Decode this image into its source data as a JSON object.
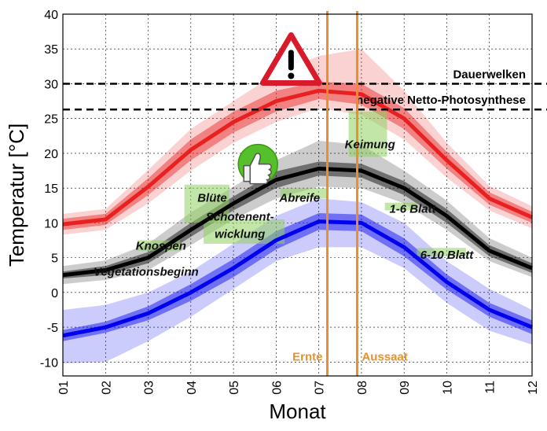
{
  "chart_data": {
    "type": "line",
    "xlabel": "Monat",
    "ylabel": "Temperatur [°C]",
    "categories": [
      "01",
      "02",
      "03",
      "04",
      "05",
      "06",
      "07",
      "08",
      "09",
      "10",
      "11",
      "12"
    ],
    "ylim": [
      -12,
      40
    ],
    "yticks": [
      40,
      35,
      30,
      25,
      20,
      15,
      10,
      5,
      0,
      -5,
      -10
    ],
    "grid": true,
    "series": [
      {
        "color": "#e82020",
        "values": [
          9.8,
          10.5,
          15.2,
          20.5,
          24.5,
          27.5,
          29.0,
          28.5,
          25.0,
          19.0,
          13.5,
          10.8
        ],
        "inner_band_low": [
          9.0,
          9.7,
          14.0,
          19.0,
          23.0,
          26.0,
          27.8,
          27.0,
          23.5,
          17.8,
          12.6,
          10.0
        ],
        "inner_band_high": [
          10.6,
          11.3,
          16.4,
          22.0,
          26.0,
          29.0,
          30.3,
          30.0,
          26.5,
          20.2,
          14.4,
          11.6
        ],
        "outer_band_low": [
          8.3,
          9.0,
          12.8,
          17.5,
          21.5,
          24.5,
          26.5,
          25.5,
          22.0,
          16.5,
          11.8,
          9.2
        ],
        "outer_band_high": [
          11.3,
          12.0,
          17.6,
          23.5,
          27.5,
          31.5,
          34.0,
          35.0,
          29.0,
          21.5,
          15.3,
          12.4
        ]
      },
      {
        "color": "#000000",
        "values": [
          2.5,
          3.2,
          5.0,
          9.0,
          12.8,
          16.2,
          17.8,
          17.5,
          15.0,
          11.0,
          6.0,
          3.5
        ],
        "inner_band_low": [
          2.0,
          2.5,
          4.2,
          8.0,
          11.8,
          15.0,
          16.8,
          16.5,
          14.0,
          10.0,
          5.2,
          2.8
        ],
        "inner_band_high": [
          3.0,
          3.8,
          5.8,
          10.0,
          13.8,
          17.4,
          18.8,
          18.5,
          16.0,
          12.0,
          6.8,
          4.2
        ],
        "outer_band_low": [
          1.2,
          1.8,
          3.2,
          6.8,
          10.5,
          13.5,
          15.2,
          15.0,
          12.8,
          9.0,
          4.5,
          2.2
        ],
        "outer_band_high": [
          3.8,
          4.6,
          7.0,
          11.5,
          15.2,
          19.0,
          21.8,
          21.2,
          17.5,
          13.2,
          7.8,
          5.0
        ]
      },
      {
        "color": "#0000ee",
        "values": [
          -6.2,
          -5.0,
          -3.0,
          0.0,
          3.5,
          7.5,
          10.2,
          10.0,
          6.5,
          1.5,
          -2.5,
          -5.0
        ],
        "inner_band_low": [
          -7.0,
          -5.8,
          -4.0,
          -1.2,
          2.2,
          6.2,
          9.0,
          8.8,
          5.2,
          0.4,
          -3.5,
          -6.0
        ],
        "inner_band_high": [
          -5.4,
          -4.2,
          -2.0,
          1.2,
          4.8,
          8.8,
          11.4,
          11.2,
          7.8,
          2.6,
          -1.5,
          -4.0
        ],
        "outer_band_low": [
          -10.2,
          -10.0,
          -7.0,
          -3.5,
          0.5,
          4.5,
          6.5,
          6.5,
          3.5,
          -1.5,
          -5.5,
          -7.5
        ],
        "outer_band_high": [
          -2.5,
          -1.8,
          0.0,
          3.0,
          7.0,
          11.0,
          13.5,
          13.0,
          10.0,
          4.5,
          0.5,
          -2.5
        ]
      }
    ],
    "thresholds": [
      {
        "label": "Dauerwelken",
        "y": 30
      },
      {
        "label": "negative Netto-Photosynthese",
        "y": 26.3
      }
    ],
    "vertical_lines": [
      {
        "label": "Ernte",
        "x": 7.2,
        "color": "#e8902a"
      },
      {
        "label": "Aussaat",
        "x": 7.9,
        "color": "#e8902a"
      }
    ],
    "stage_boxes": [
      {
        "x0": 2.75,
        "x1": 3.75,
        "y0": 6.0,
        "y1": 7.5
      },
      {
        "x0": 3.85,
        "x1": 4.9,
        "y0": 10.0,
        "y1": 15.5
      },
      {
        "x0": 4.3,
        "x1": 6.2,
        "y0": 7.0,
        "y1": 10.5
      },
      {
        "x0": 6.1,
        "x1": 7.2,
        "y0": 13.5,
        "y1": 15.0
      },
      {
        "x0": 7.7,
        "x1": 8.6,
        "y0": 19.5,
        "y1": 26.0
      },
      {
        "x0": 8.55,
        "x1": 9.3,
        "y0": 11.8,
        "y1": 12.9
      },
      {
        "x0": 9.3,
        "x1": 10.45,
        "y0": 5.2,
        "y1": 6.4
      }
    ],
    "stage_labels": [
      {
        "text": "Vegetationsbeginn",
        "x": 2.95,
        "y": 3.0
      },
      {
        "text": "Knospen",
        "x": 3.3,
        "y": 6.7
      },
      {
        "text": "Blüte",
        "x": 4.5,
        "y": 13.6
      },
      {
        "text": "Schotenent-",
        "x": 5.15,
        "y": 10.9
      },
      {
        "text": "wicklung",
        "x": 5.15,
        "y": 8.4
      },
      {
        "text": "Abreife",
        "x": 6.55,
        "y": 13.6
      },
      {
        "text": "Keimung",
        "x": 8.2,
        "y": 21.3
      },
      {
        "text": "1-6 Blatt",
        "x": 9.2,
        "y": 12.0
      },
      {
        "text": "6-10 Blatt",
        "x": 10.0,
        "y": 5.4
      }
    ],
    "icons": [
      {
        "name": "warning-triangle-icon",
        "x": 6.35,
        "y": 33.5
      },
      {
        "name": "thumbs-up-icon",
        "x": 5.5,
        "y": 18.0
      }
    ]
  }
}
